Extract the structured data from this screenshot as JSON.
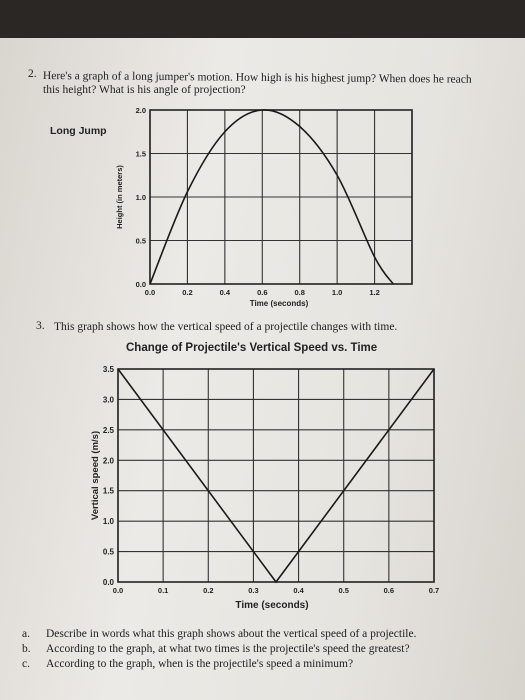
{
  "q2": {
    "number": "2.",
    "line1": "Here's a graph of a long jumper's motion. How high is his highest jump? When does he reach",
    "line2": "this height? What is his angle of projection?",
    "side_label": "Long Jump"
  },
  "q3": {
    "number": "3.",
    "text": "This graph shows how the vertical speed of a projectile changes with time.",
    "title": "Change of Projectile's Vertical Speed vs. Time"
  },
  "subquestions": [
    {
      "letter": "a.",
      "text": "Describe in words what this graph shows about the vertical speed of a projectile."
    },
    {
      "letter": "b.",
      "text": "According to the graph, at what two times is the projectile's speed the greatest?"
    },
    {
      "letter": "c.",
      "text": "According to the graph, when is the projectile's speed a minimum?"
    }
  ],
  "chart_data": [
    {
      "type": "line",
      "title": "",
      "xlabel": "Time (seconds)",
      "ylabel": "Height (in meters)",
      "xlim": [
        0,
        1.4
      ],
      "ylim": [
        0,
        2.0
      ],
      "x_ticks": [
        "0.0",
        "0.2",
        "0.4",
        "0.6",
        "0.8",
        "1.0",
        "1.2"
      ],
      "y_ticks": [
        "0.0",
        "0.5",
        "1.0",
        "1.5",
        "2.0"
      ],
      "grid": true,
      "series": [
        {
          "x": [
            0.0,
            0.2,
            0.4,
            0.6,
            0.8,
            1.0,
            1.2,
            1.3
          ],
          "y": [
            0.0,
            1.06,
            1.75,
            2.0,
            1.81,
            1.25,
            0.31,
            0.0
          ]
        }
      ]
    },
    {
      "type": "line",
      "title": "Change of Projectile's Vertical Speed vs. Time",
      "xlabel": "Time (seconds)",
      "ylabel": "Vertical speed (m/s)",
      "xlim": [
        0,
        0.7
      ],
      "ylim": [
        0,
        3.5
      ],
      "x_ticks": [
        "0.0",
        "0.1",
        "0.2",
        "0.3",
        "0.4",
        "0.5",
        "0.6",
        "0.7"
      ],
      "y_ticks": [
        "0.0",
        "0.5",
        "1.0",
        "1.5",
        "2.0",
        "2.5",
        "3.0",
        "3.5"
      ],
      "grid": true,
      "series": [
        {
          "x": [
            0.0,
            0.35,
            0.7
          ],
          "y": [
            3.5,
            0.0,
            3.5
          ]
        }
      ]
    }
  ]
}
